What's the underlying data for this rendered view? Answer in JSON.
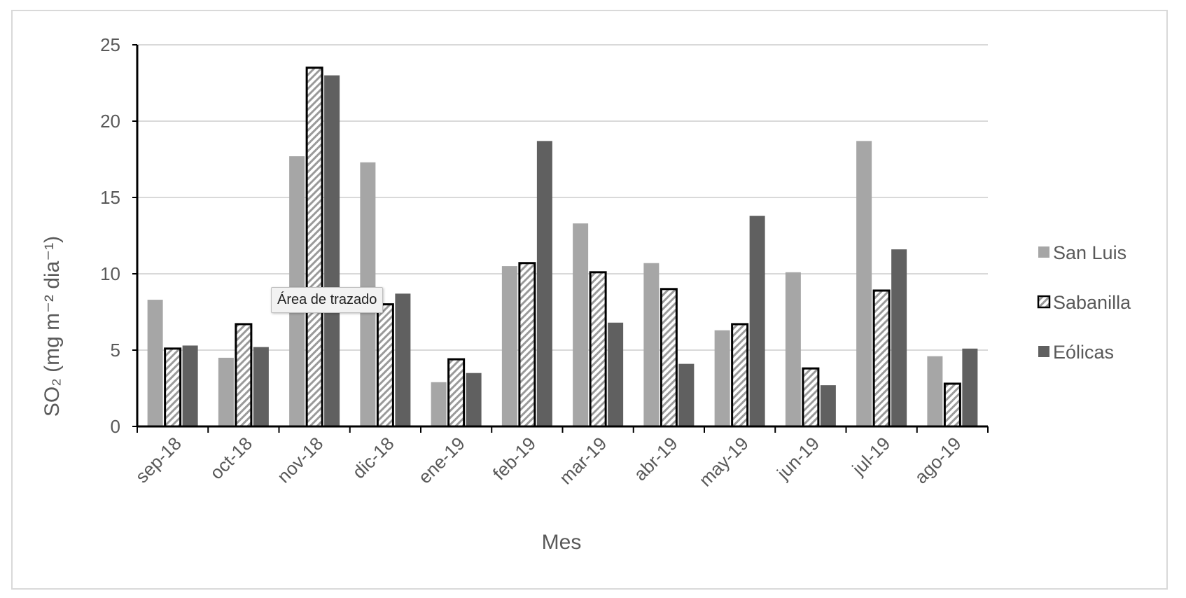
{
  "chart_data": {
    "type": "bar",
    "categories": [
      "sep-18",
      "oct-18",
      "nov-18",
      "dic-18",
      "ene-19",
      "feb-19",
      "mar-19",
      "abr-19",
      "may-19",
      "jun-19",
      "jul-19",
      "ago-19"
    ],
    "series": [
      {
        "name": "San Luis",
        "style": "solid-light",
        "color": "#a6a6a6",
        "values": [
          8.3,
          4.5,
          17.7,
          17.3,
          2.9,
          10.5,
          13.3,
          10.7,
          6.3,
          10.1,
          18.7,
          4.6
        ]
      },
      {
        "name": "Sabanilla",
        "style": "hatched",
        "color": "#ffffff",
        "values": [
          5.1,
          6.7,
          23.5,
          8.0,
          4.4,
          10.7,
          10.1,
          9.0,
          6.7,
          3.8,
          8.9,
          2.8
        ]
      },
      {
        "name": "Eólicas",
        "style": "solid-dark",
        "color": "#606060",
        "values": [
          5.3,
          5.2,
          23.0,
          8.7,
          3.5,
          18.7,
          6.8,
          4.1,
          13.8,
          2.7,
          11.6,
          5.1
        ]
      }
    ],
    "xlabel": "Mes",
    "ylabel": "SO₂ (mg m⁻² dia⁻¹)",
    "ylim": [
      0,
      25
    ],
    "yticks": [
      "0",
      "5",
      "10",
      "15",
      "20",
      "25"
    ],
    "grid": "horizontal",
    "legend": "right"
  },
  "tooltip": {
    "text": "Área de trazado"
  },
  "colors": {
    "gridline": "#d9d9d9",
    "axis": "#000000",
    "text": "#595959"
  }
}
